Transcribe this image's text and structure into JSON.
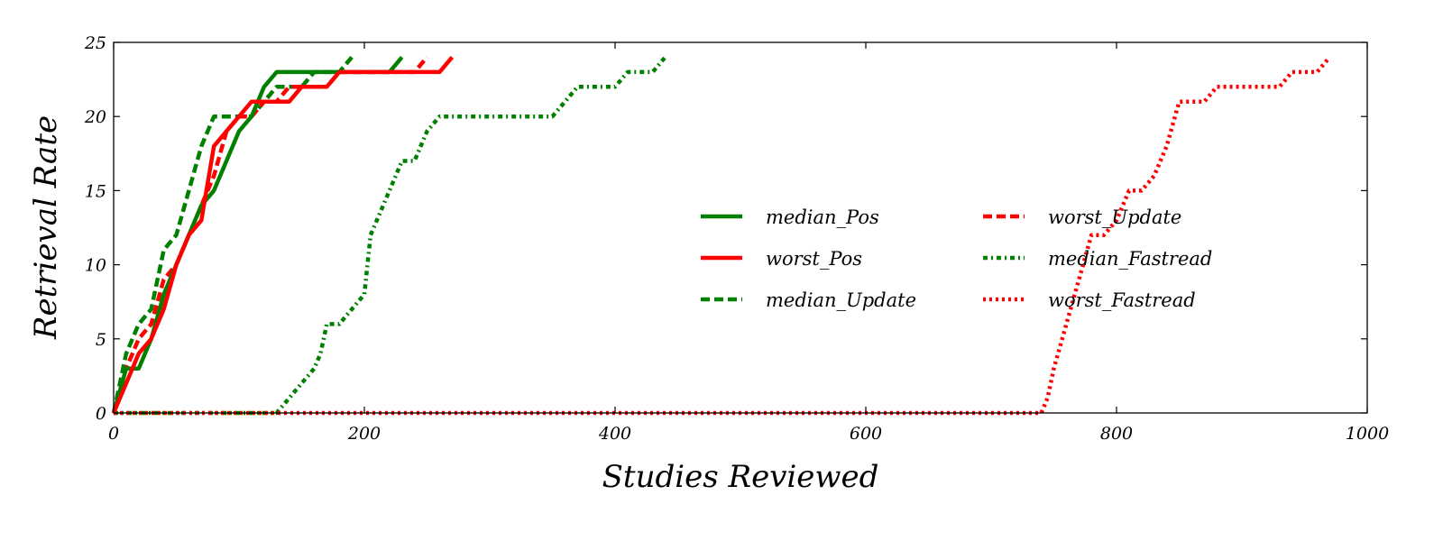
{
  "chart_data": {
    "type": "line",
    "title": "",
    "xlabel": "Studies Reviewed",
    "ylabel": "Retrieval Rate",
    "xlim": [
      0,
      1000
    ],
    "ylim": [
      0,
      25
    ],
    "xticks": [
      0,
      200,
      400,
      600,
      800,
      1000
    ],
    "yticks": [
      0,
      5,
      10,
      15,
      20,
      25
    ],
    "grid": false,
    "legend_position": "center-right",
    "series": [
      {
        "name": "median_Pos",
        "color": "#008000",
        "style": "solid",
        "x": [
          0,
          10,
          20,
          30,
          40,
          50,
          60,
          70,
          80,
          90,
          100,
          110,
          120,
          130,
          140,
          150,
          160,
          170,
          180,
          190,
          200,
          210,
          220,
          230
        ],
        "y": [
          0,
          3,
          3,
          5,
          8,
          10,
          12,
          14,
          15,
          17,
          19,
          20,
          22,
          23,
          23,
          23,
          23,
          23,
          23,
          23,
          23,
          23,
          23,
          24
        ]
      },
      {
        "name": "worst_Pos",
        "color": "#ff0000",
        "style": "solid",
        "x": [
          0,
          10,
          20,
          30,
          40,
          50,
          60,
          70,
          80,
          90,
          100,
          110,
          120,
          130,
          140,
          150,
          160,
          170,
          180,
          200,
          220,
          240,
          260,
          270
        ],
        "y": [
          0,
          2,
          4,
          5,
          7,
          10,
          12,
          13,
          18,
          19,
          20,
          21,
          21,
          21,
          21,
          22,
          22,
          22,
          23,
          23,
          23,
          23,
          23,
          24
        ]
      },
      {
        "name": "median_Update",
        "color": "#008000",
        "style": "dashed",
        "x": [
          0,
          10,
          20,
          30,
          40,
          50,
          60,
          70,
          80,
          90,
          100,
          110,
          120,
          130,
          140,
          150,
          160,
          170,
          180,
          190
        ],
        "y": [
          0,
          4,
          6,
          7,
          11,
          12,
          15,
          18,
          20,
          20,
          20,
          20,
          21,
          22,
          22,
          22,
          23,
          23,
          23,
          24
        ]
      },
      {
        "name": "worst_Update",
        "color": "#ff0000",
        "style": "dashed",
        "x": [
          0,
          10,
          20,
          30,
          40,
          50,
          60,
          70,
          80,
          90,
          100,
          110,
          120,
          130,
          140,
          150,
          160,
          170,
          180,
          200,
          220,
          230,
          240,
          250
        ],
        "y": [
          0,
          3,
          5,
          6,
          9,
          10,
          12,
          14,
          16,
          19,
          20,
          20,
          21,
          21,
          22,
          22,
          22,
          22,
          23,
          23,
          23,
          23,
          23,
          24
        ]
      },
      {
        "name": "median_Fastread",
        "color": "#008000",
        "style": "dashdot",
        "x": [
          0,
          130,
          140,
          150,
          160,
          165,
          170,
          180,
          190,
          200,
          205,
          210,
          220,
          225,
          230,
          240,
          250,
          260,
          270,
          300,
          330,
          350,
          360,
          370,
          390,
          400,
          410,
          430,
          440
        ],
        "y": [
          0,
          0,
          1,
          2,
          3,
          4,
          6,
          6,
          7,
          8,
          12,
          13,
          15,
          16,
          17,
          17,
          19,
          20,
          20,
          20,
          20,
          20,
          21,
          22,
          22,
          22,
          23,
          23,
          24
        ]
      },
      {
        "name": "worst_Fastread",
        "color": "#ff0000",
        "style": "dotted",
        "x": [
          0,
          740,
          745,
          750,
          760,
          770,
          780,
          790,
          800,
          810,
          820,
          830,
          840,
          850,
          860,
          870,
          880,
          900,
          930,
          940,
          960,
          970
        ],
        "y": [
          0,
          0,
          1,
          3,
          6,
          9,
          12,
          12,
          13,
          15,
          15,
          16,
          18,
          21,
          21,
          21,
          22,
          22,
          22,
          23,
          23,
          24
        ]
      }
    ]
  }
}
